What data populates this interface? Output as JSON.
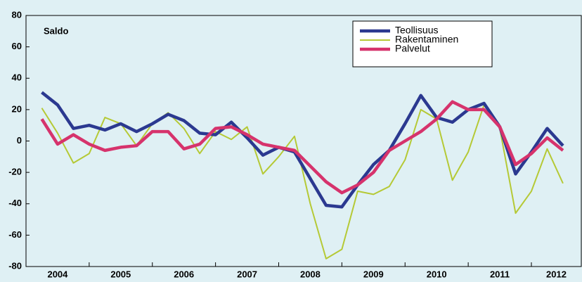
{
  "chart_data": {
    "type": "line",
    "title": "Saldo",
    "x": [
      2004.25,
      2004.5,
      2004.75,
      2005,
      2005.25,
      2005.5,
      2005.75,
      2006,
      2006.25,
      2006.5,
      2006.75,
      2007,
      2007.25,
      2007.5,
      2007.75,
      2008,
      2008.25,
      2008.5,
      2008.75,
      2009,
      2009.25,
      2009.5,
      2009.75,
      2010,
      2010.25,
      2010.5,
      2010.75,
      2011,
      2011.25,
      2011.5,
      2011.75,
      2012,
      2012.25,
      2012.5
    ],
    "year_labels": [
      "2004",
      "2005",
      "2006",
      "2007",
      "2008",
      "2009",
      "2010",
      "2011",
      "2012"
    ],
    "year_starts": [
      2004,
      2005,
      2006,
      2007,
      2008,
      2009,
      2010,
      2011,
      2012
    ],
    "series": [
      {
        "name": "Teollisuus",
        "color": "#2b3990",
        "width": 4.5,
        "values": [
          31,
          23,
          8,
          10,
          7,
          11,
          6,
          11,
          17,
          13,
          5,
          4,
          12,
          2,
          -9,
          -4,
          -7,
          -24,
          -41,
          -42,
          -28,
          -15,
          -6,
          11,
          29,
          15,
          12,
          20,
          24,
          9,
          -21,
          -7,
          8,
          -3
        ]
      },
      {
        "name": "Rakentaminen",
        "color": "#b5c935",
        "width": 2,
        "values": [
          21,
          5,
          -14,
          -8,
          15,
          11,
          -3,
          11,
          18,
          8,
          -8,
          6,
          1,
          9,
          -21,
          -10,
          3,
          -40,
          -75,
          -69,
          -32,
          -34,
          -29,
          -12,
          20,
          14,
          -25,
          -7,
          23,
          8,
          -46,
          -32,
          -5,
          -27
        ]
      },
      {
        "name": "Palvelut",
        "color": "#d6336c",
        "width": 4.5,
        "values": [
          14,
          -2,
          4,
          -2,
          -6,
          -4,
          -3,
          6,
          6,
          -5,
          -2,
          8,
          9,
          4,
          -2,
          -4,
          -6,
          -16,
          -26,
          -33,
          -28,
          -20,
          -6,
          0,
          6,
          14,
          25,
          20,
          20,
          9,
          -15,
          -8,
          2,
          -6
        ]
      }
    ],
    "xlim": [
      2004,
      2012.79
    ],
    "xticks": [
      2005,
      2006,
      2007,
      2008,
      2009,
      2010,
      2011,
      2012
    ],
    "ylim": [
      -80,
      80
    ],
    "yticks": [
      -80,
      -60,
      -40,
      -20,
      0,
      20,
      40,
      60,
      80
    ]
  }
}
